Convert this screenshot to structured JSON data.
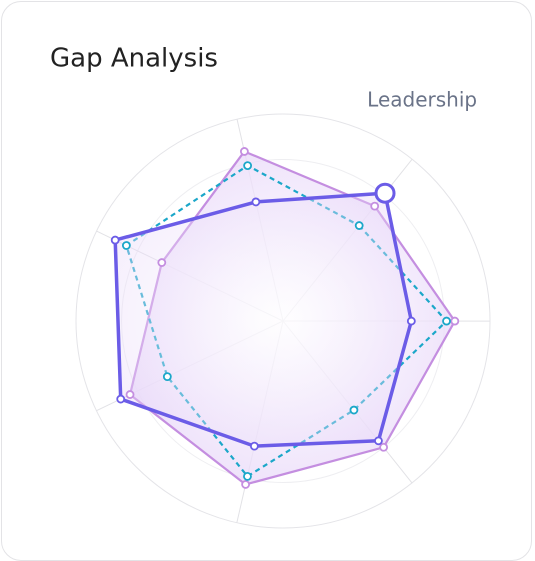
{
  "chart_data": {
    "type": "radar",
    "title": "Gap Analysis",
    "categories": [
      "Leadership",
      null,
      null,
      null,
      null,
      null,
      null
    ],
    "rlim": [
      0,
      100
    ],
    "grid": true,
    "highlight": 0,
    "series": [
      {
        "color": "#c48ee0",
        "style": "solid",
        "values": [
          71,
          83,
          78,
          81,
          82,
          65,
          84
        ]
      },
      {
        "color": "#1ba7c9",
        "style": "dashed",
        "values": [
          59,
          79,
          55,
          77,
          62,
          84,
          77
        ]
      },
      {
        "color": "#6b5ce7",
        "style": "solid",
        "values": [
          79,
          62,
          74,
          62,
          87,
          90,
          59
        ]
      }
    ]
  }
}
